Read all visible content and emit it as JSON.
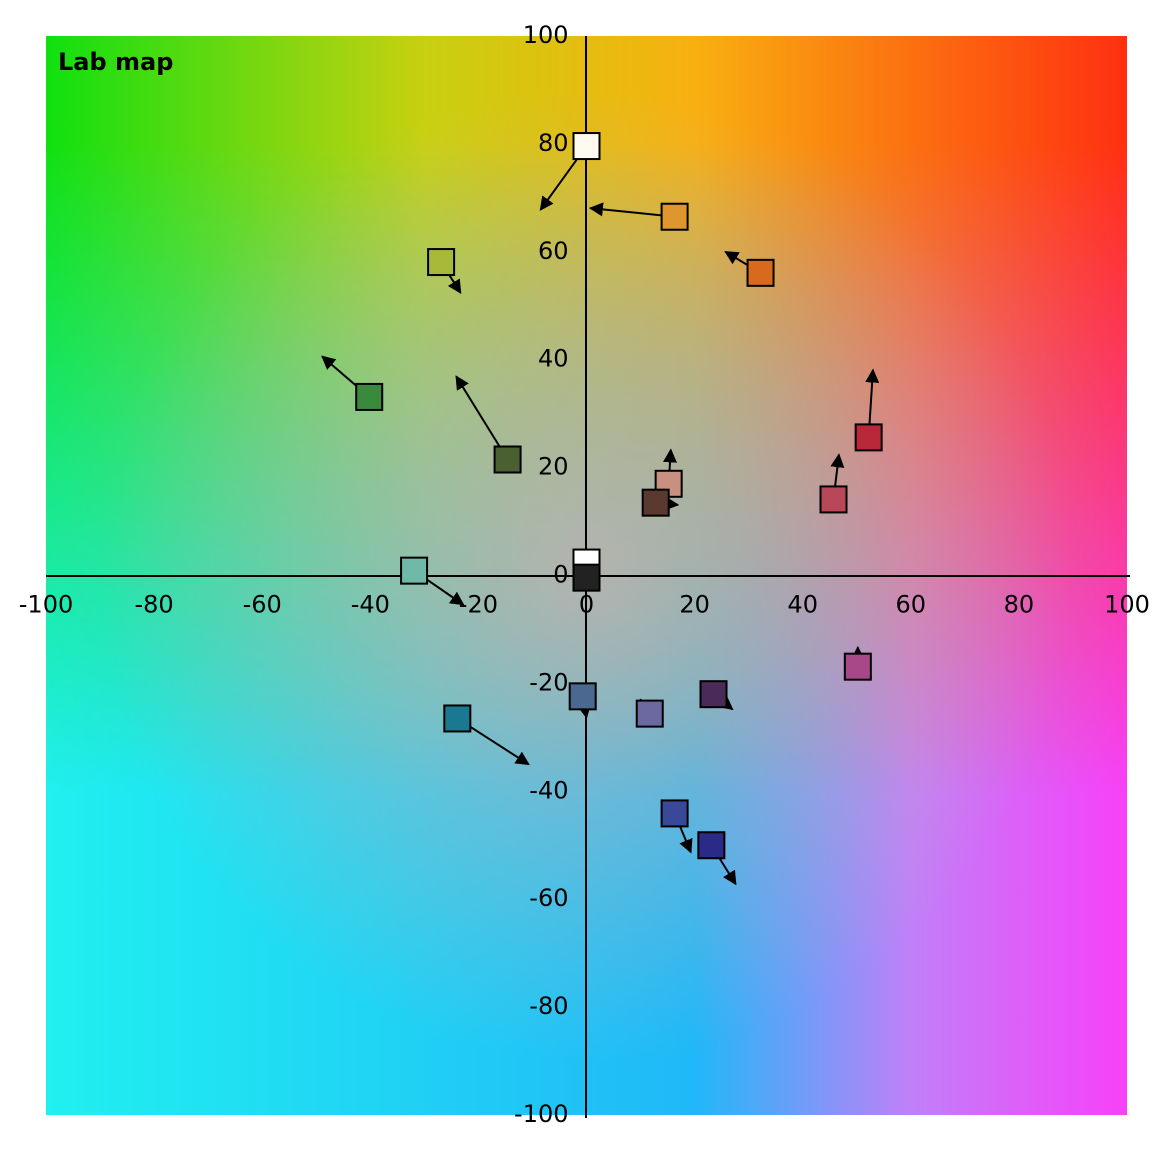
{
  "chart_data": {
    "type": "scatter",
    "title": "Lab map",
    "xlim": [
      -100,
      100
    ],
    "ylim": [
      -100,
      100
    ],
    "xticks": [
      -100,
      -80,
      -60,
      -40,
      -20,
      0,
      20,
      40,
      60,
      80,
      100
    ],
    "yticks": [
      -100,
      -80,
      -60,
      -40,
      -20,
      0,
      20,
      40,
      60,
      80,
      100
    ],
    "grid": false,
    "x": [
      0,
      16.3,
      32.2,
      -26.9,
      -40.2,
      -14.6,
      52.2,
      45.7,
      15.2,
      12.8,
      -31.9,
      0,
      0,
      50.2,
      -0.7,
      23.5,
      11.7,
      -23.9,
      16.3,
      23.1
    ],
    "y": [
      79.6,
      66.5,
      56.1,
      58.1,
      33.1,
      21.5,
      25.6,
      14.1,
      17,
      13.5,
      0.9,
      2.4,
      -0.4,
      -16.9,
      -22.4,
      -22,
      -25.6,
      -26.5,
      -44.1,
      -50
    ],
    "x_target": [
      -8.5,
      0.7,
      25.7,
      -23.3,
      -48.9,
      -24.1,
      53,
      46.7,
      15.6,
      16.9,
      -22.8,
      0,
      0,
      50.2,
      0,
      27,
      10,
      -10.7,
      19.3,
      27.6
    ],
    "y_target": [
      67.8,
      68.1,
      60,
      52.4,
      40.6,
      36.9,
      38.1,
      22.4,
      23.3,
      13.1,
      -5.4,
      2.4,
      -0.4,
      -13.3,
      -26.3,
      -24.8,
      -23,
      -35,
      -51.3,
      -57.2
    ],
    "colors": [
      "#fffaf0",
      "#e0962e",
      "#d86a1e",
      "#a8b838",
      "#3a8a3e",
      "#4a6030",
      "#b82838",
      "#b84858",
      "#c89080",
      "#5a3a30",
      "#70b8a8",
      "#ffffff",
      "#222222",
      "#a84888",
      "#4a6890",
      "#4a2a58",
      "#6a6aa0",
      "#1a7890",
      "#3a4898",
      "#2a2a88"
    ]
  }
}
